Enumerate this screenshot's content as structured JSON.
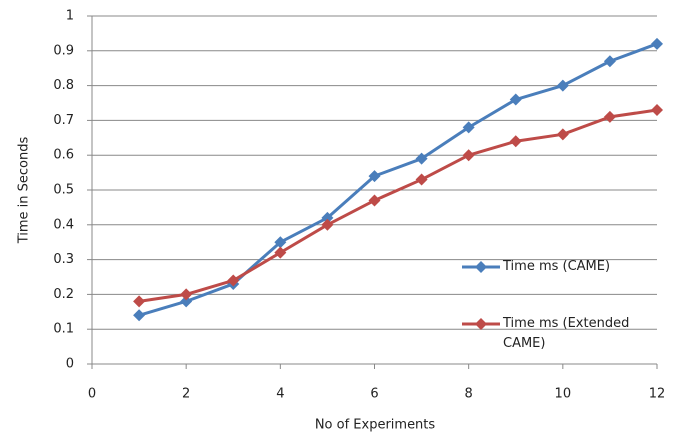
{
  "chart_data": {
    "type": "line",
    "x_label": "No of Experiments",
    "y_label": "Time in Seconds",
    "x": [
      1,
      2,
      3,
      4,
      5,
      6,
      7,
      8,
      9,
      10,
      11,
      12
    ],
    "series": [
      {
        "name": "Time ms (CAME)",
        "color": "#4a7ebb",
        "values": [
          0.14,
          0.18,
          0.23,
          0.35,
          0.42,
          0.54,
          0.59,
          0.68,
          0.76,
          0.8,
          0.87,
          0.92
        ]
      },
      {
        "name": "Time ms (Extended CAME)",
        "color": "#be4b48",
        "values": [
          0.18,
          0.2,
          0.24,
          0.32,
          0.4,
          0.47,
          0.53,
          0.6,
          0.64,
          0.66,
          0.71,
          0.73
        ]
      }
    ],
    "xlim": [
      0,
      12
    ],
    "xticks": [
      0,
      2,
      4,
      6,
      8,
      10,
      12
    ],
    "ylim": [
      0,
      1
    ],
    "yticks": [
      0,
      0.1,
      0.2,
      0.3,
      0.4,
      0.5,
      0.6,
      0.7,
      0.8,
      0.9,
      1
    ],
    "grid": true,
    "legend_position": "right"
  }
}
